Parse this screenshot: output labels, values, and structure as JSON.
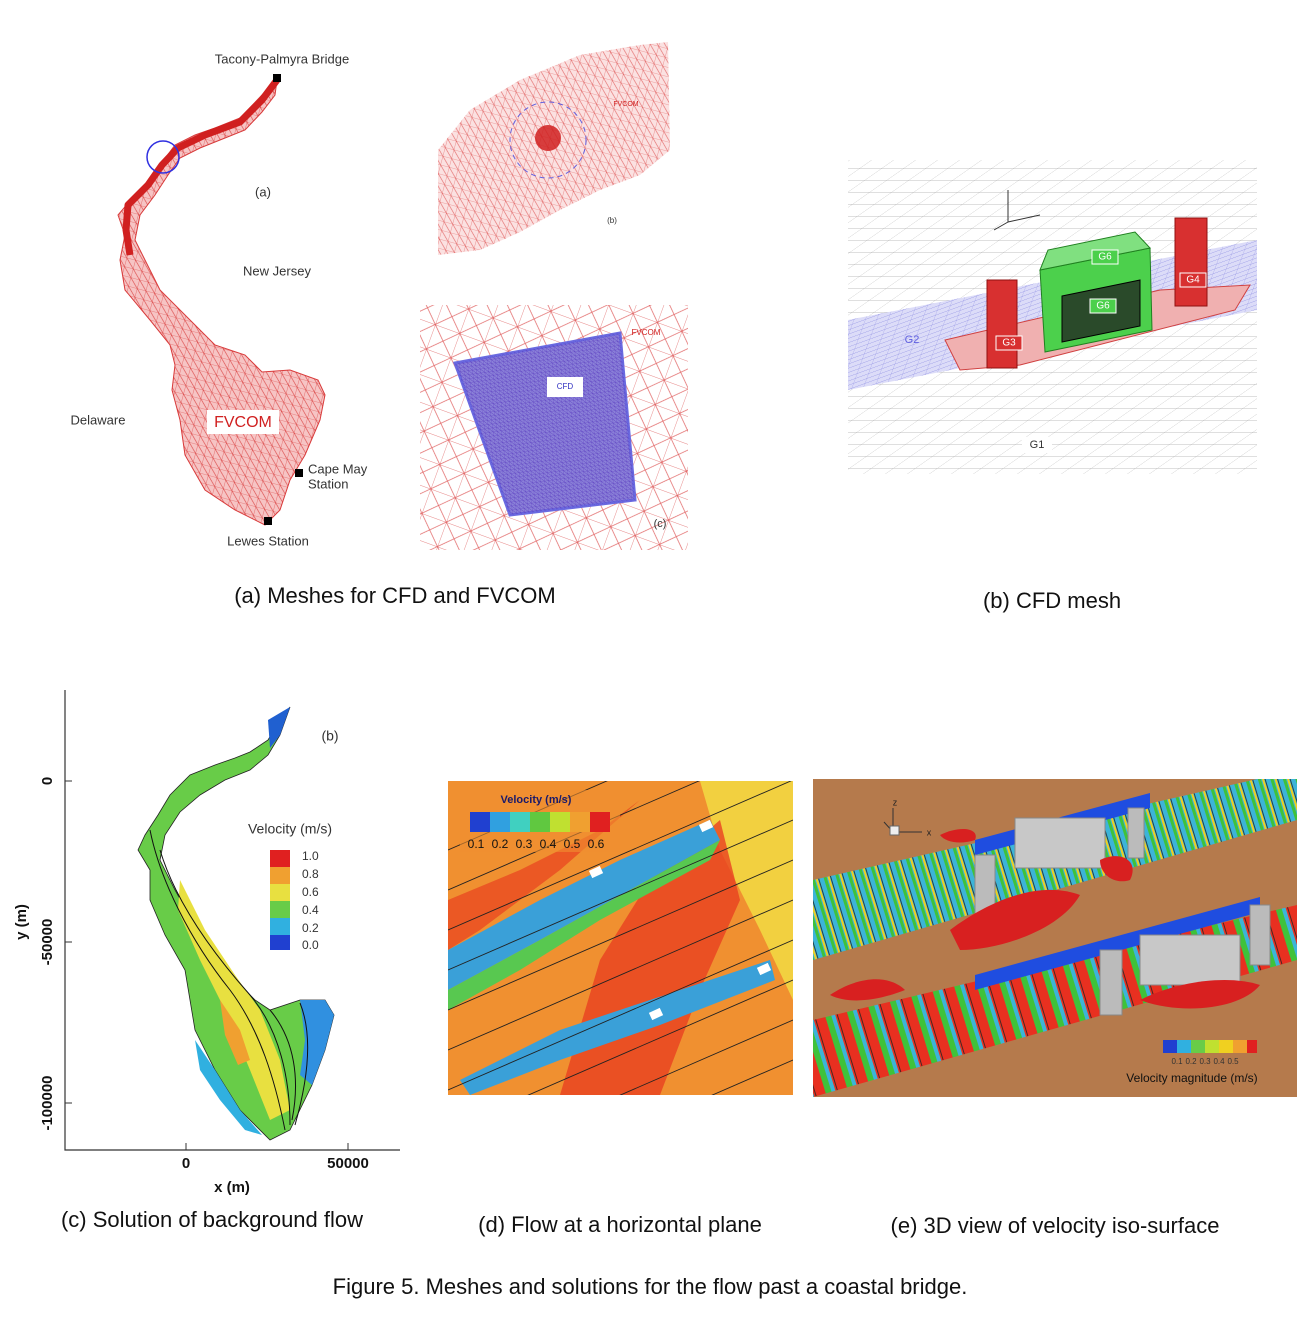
{
  "panel_a": {
    "map_labels": [
      "Tacony-Palmyra Bridge",
      "(a)",
      "New Jersey",
      "Delaware",
      "Cape May",
      "Station",
      "Lewes Station"
    ],
    "model_label": "FVCOM",
    "inset_b": {
      "model_label": "FVCOM",
      "tag": "(b)"
    },
    "inset_c": {
      "model_label": "FVCOM",
      "cfd_label": "CFD",
      "tag": "(c)"
    },
    "caption": "(a) Meshes for CFD and FVCOM"
  },
  "panel_b": {
    "grid_labels": [
      "G6",
      "G6",
      "G4",
      "G3",
      "G2",
      "G1"
    ],
    "caption": "(b) CFD mesh"
  },
  "panel_c": {
    "tag": "(b)",
    "x_label": "x (m)",
    "y_label": "y (m)",
    "x_ticks": [
      "0",
      "50000"
    ],
    "y_ticks": [
      "0",
      "-50000",
      "-100000"
    ],
    "legend_title": "Velocity (m/s)",
    "legend_levels": [
      "1.0",
      "0.8",
      "0.6",
      "0.4",
      "0.2",
      "0.0"
    ],
    "caption": "(c) Solution of background flow"
  },
  "panel_d": {
    "legend_title": "Velocity (m/s)",
    "legend_levels": [
      "0.1",
      "0.2",
      "0.3",
      "0.4",
      "0.5",
      "0.6"
    ],
    "caption": "(d) Flow at a horizontal plane"
  },
  "panel_e": {
    "axis_labels": [
      "z",
      "x"
    ],
    "legend_levels": [
      "0.1",
      "0.2",
      "0.3",
      "0.4",
      "0.5"
    ],
    "legend_title": "Velocity magnitude (m/s)",
    "caption": "(e) 3D view of velocity iso-surface"
  },
  "figure_caption": "Figure 5. Meshes and solutions for the flow past a coastal bridge."
}
